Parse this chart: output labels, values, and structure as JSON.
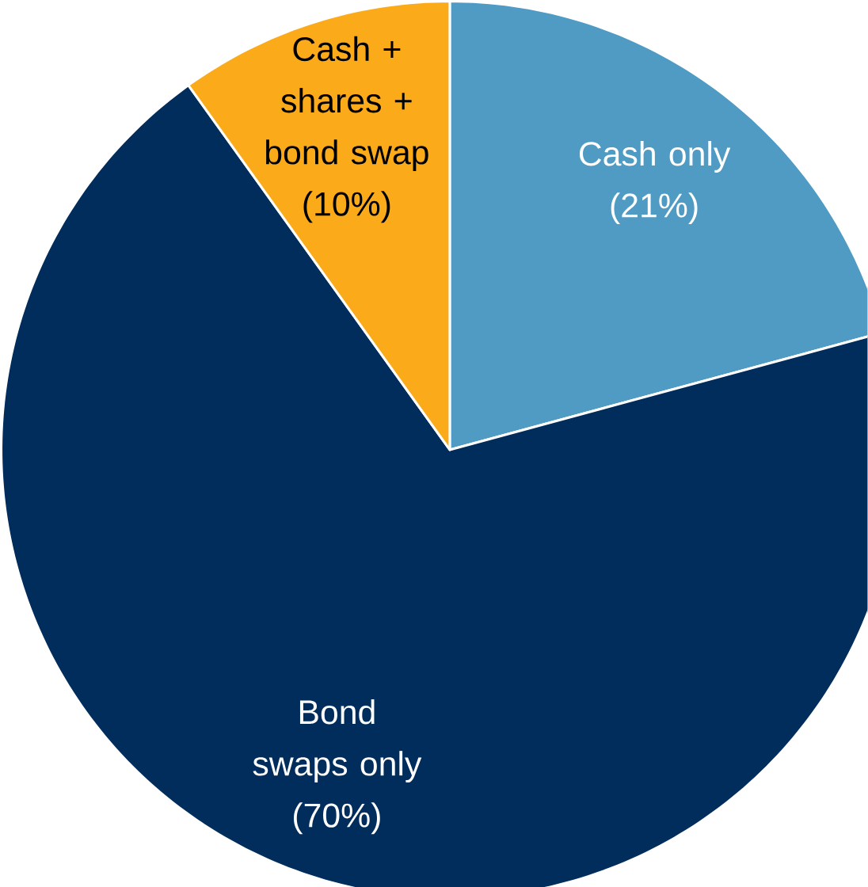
{
  "chart_data": {
    "type": "pie",
    "categories": [
      "Cash only",
      "Bond swaps only",
      "Cash + shares + bond swap"
    ],
    "values": [
      21,
      70,
      10
    ],
    "value_labels": [
      "(21%)",
      "(70%)",
      "(10%)"
    ],
    "colors": [
      "#4f9bc4",
      "#002d5c",
      "#fbaa19"
    ]
  }
}
